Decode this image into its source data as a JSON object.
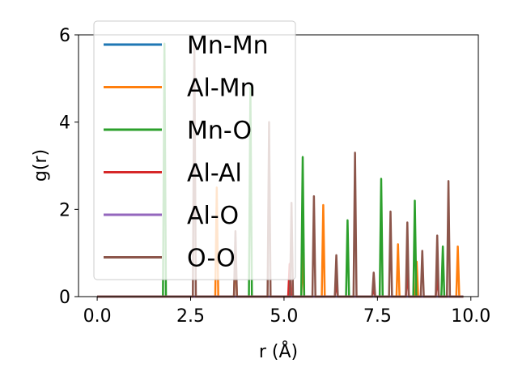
{
  "chart_data": {
    "type": "line",
    "title": "",
    "xlabel": "r (Å)",
    "ylabel": "g(r)",
    "xlim": [
      -0.5,
      10.2
    ],
    "ylim": [
      0,
      6.0
    ],
    "xticks": [
      0.0,
      2.5,
      5.0,
      7.5,
      10.0
    ],
    "xtick_labels": [
      "0.0",
      "2.5",
      "5.0",
      "7.5",
      "10.0"
    ],
    "yticks": [
      0,
      2,
      4,
      6
    ],
    "ytick_labels": [
      "0",
      "2",
      "4",
      "6"
    ],
    "legend_position": "upper-left",
    "grid": false,
    "x_start": 0.0,
    "x_end": 9.8,
    "series": [
      {
        "name": "Mn-Mn",
        "color": "#1f77b4",
        "peaks": []
      },
      {
        "name": "Al-Mn",
        "color": "#ff7f0e",
        "peaks": [
          [
            3.2,
            2.5
          ],
          [
            3.7,
            1.0
          ],
          [
            5.5,
            1.0
          ],
          [
            6.05,
            2.1
          ],
          [
            8.05,
            1.2
          ],
          [
            8.55,
            0.8
          ],
          [
            9.65,
            1.15
          ]
        ]
      },
      {
        "name": "Mn-O",
        "color": "#2ca02c",
        "peaks": [
          [
            1.8,
            5.8
          ],
          [
            4.1,
            4.8
          ],
          [
            5.5,
            3.2
          ],
          [
            6.7,
            1.75
          ],
          [
            7.6,
            2.7
          ],
          [
            8.5,
            2.2
          ],
          [
            9.25,
            1.15
          ]
        ]
      },
      {
        "name": "Al-Al",
        "color": "#d62728",
        "peaks": [
          [
            5.15,
            0.75
          ],
          [
            6.4,
            0.35
          ],
          [
            7.4,
            0.2
          ],
          [
            8.3,
            0.6
          ],
          [
            9.1,
            0.5
          ]
        ]
      },
      {
        "name": "Al-O",
        "color": "#9467bd",
        "peaks": []
      },
      {
        "name": "O-O",
        "color": "#8c564b",
        "peaks": [
          [
            2.6,
            5.8
          ],
          [
            3.7,
            1.5
          ],
          [
            4.6,
            4.0
          ],
          [
            5.2,
            2.15
          ],
          [
            5.8,
            2.3
          ],
          [
            6.4,
            0.95
          ],
          [
            6.9,
            3.3
          ],
          [
            7.4,
            0.55
          ],
          [
            7.85,
            1.95
          ],
          [
            8.3,
            1.7
          ],
          [
            8.7,
            1.05
          ],
          [
            9.1,
            1.4
          ],
          [
            9.4,
            2.65
          ]
        ]
      }
    ]
  }
}
